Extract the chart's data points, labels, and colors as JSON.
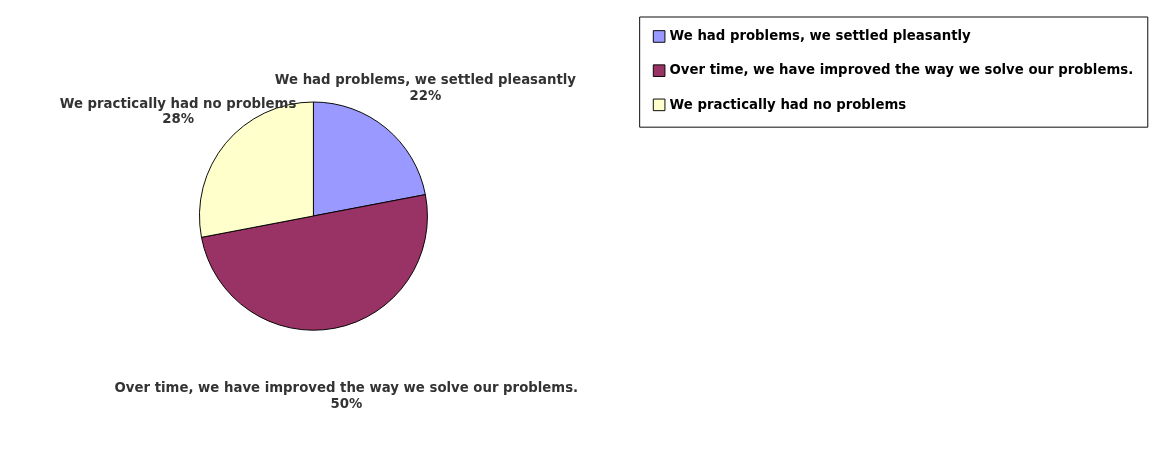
{
  "chart_data": {
    "type": "pie",
    "categories": [
      "We had problems, we settled pleasantly",
      "Over time, we have improved the way we solve our problems.",
      "We practically had no problems"
    ],
    "values": [
      22,
      50,
      28
    ],
    "value_labels": [
      "22%",
      "50%",
      "28%"
    ],
    "colors": [
      "#9999ff",
      "#993366",
      "#ffffcc"
    ],
    "legend": "right"
  }
}
